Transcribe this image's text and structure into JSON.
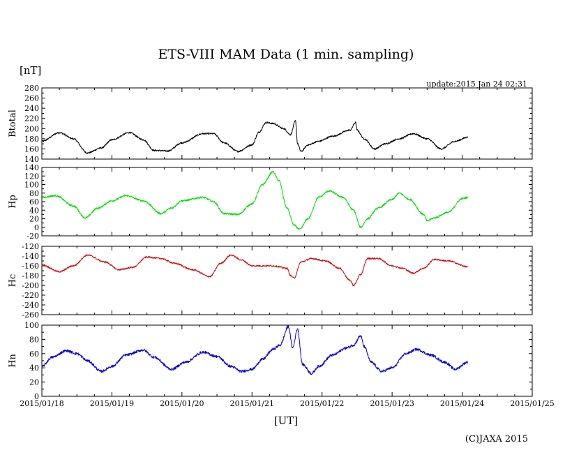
{
  "chart_data": {
    "type": "line",
    "title": "ETS-VIII MAM Data (1 min. sampling)",
    "unit_label": "[nT]",
    "update_text": "update:2015 Jan 24 02:31",
    "xlabel": "[UT]",
    "copyright": "(C)JAXA 2015",
    "x_tick_labels": [
      "2015/01/18",
      "2015/01/19",
      "2015/01/20",
      "2015/01/21",
      "2015/01/22",
      "2015/01/23",
      "2015/01/24",
      "2015/01/25"
    ],
    "x_range_days": [
      0,
      7
    ],
    "data_end_day": 6.08,
    "panels": [
      {
        "name": "Btotal",
        "color": "#000000",
        "ylim": [
          140,
          280
        ],
        "yticks": [
          140,
          160,
          180,
          200,
          220,
          240,
          260,
          280
        ],
        "yticklabels": [
          "140",
          "160",
          "180",
          "200",
          "220",
          "240",
          "260",
          "280"
        ],
        "noise": 1.5,
        "points": [
          [
            0,
            175
          ],
          [
            0.25,
            192
          ],
          [
            0.45,
            180
          ],
          [
            0.65,
            152
          ],
          [
            0.85,
            162
          ],
          [
            1.0,
            178
          ],
          [
            1.25,
            192
          ],
          [
            1.45,
            178
          ],
          [
            1.6,
            157
          ],
          [
            1.8,
            156
          ],
          [
            2.0,
            172
          ],
          [
            2.3,
            190
          ],
          [
            2.45,
            190
          ],
          [
            2.6,
            172
          ],
          [
            2.8,
            155
          ],
          [
            3.0,
            168
          ],
          [
            3.1,
            193
          ],
          [
            3.2,
            212
          ],
          [
            3.3,
            210
          ],
          [
            3.45,
            200
          ],
          [
            3.55,
            188
          ],
          [
            3.62,
            215
          ],
          [
            3.65,
            170
          ],
          [
            3.7,
            155
          ],
          [
            3.8,
            168
          ],
          [
            3.95,
            175
          ],
          [
            4.15,
            185
          ],
          [
            4.4,
            197
          ],
          [
            4.48,
            212
          ],
          [
            4.5,
            197
          ],
          [
            4.6,
            180
          ],
          [
            4.75,
            160
          ],
          [
            4.9,
            170
          ],
          [
            5.1,
            180
          ],
          [
            5.3,
            190
          ],
          [
            5.5,
            180
          ],
          [
            5.7,
            160
          ],
          [
            5.9,
            175
          ],
          [
            6.08,
            183
          ]
        ]
      },
      {
        "name": "Hp",
        "color": "#00dd00",
        "ylim": [
          -20,
          140
        ],
        "yticks": [
          -20,
          0,
          20,
          40,
          60,
          80,
          100,
          120,
          140
        ],
        "yticklabels": [
          "-20",
          "0",
          "20",
          "40",
          "60",
          "80",
          "100",
          "120",
          "140"
        ],
        "noise": 2.0,
        "points": [
          [
            0,
            70
          ],
          [
            0.2,
            74
          ],
          [
            0.45,
            50
          ],
          [
            0.62,
            22
          ],
          [
            0.8,
            45
          ],
          [
            1.0,
            62
          ],
          [
            1.2,
            74
          ],
          [
            1.45,
            62
          ],
          [
            1.7,
            32
          ],
          [
            1.85,
            45
          ],
          [
            2.0,
            62
          ],
          [
            2.3,
            70
          ],
          [
            2.45,
            60
          ],
          [
            2.6,
            32
          ],
          [
            2.8,
            30
          ],
          [
            3.0,
            55
          ],
          [
            3.15,
            100
          ],
          [
            3.3,
            130
          ],
          [
            3.38,
            110
          ],
          [
            3.5,
            45
          ],
          [
            3.6,
            5
          ],
          [
            3.68,
            -5
          ],
          [
            3.8,
            20
          ],
          [
            3.95,
            70
          ],
          [
            4.1,
            85
          ],
          [
            4.3,
            70
          ],
          [
            4.45,
            40
          ],
          [
            4.55,
            0
          ],
          [
            4.65,
            20
          ],
          [
            4.8,
            45
          ],
          [
            5.0,
            65
          ],
          [
            5.1,
            80
          ],
          [
            5.25,
            65
          ],
          [
            5.45,
            30
          ],
          [
            5.5,
            15
          ],
          [
            5.6,
            22
          ],
          [
            5.8,
            35
          ],
          [
            6.0,
            67
          ],
          [
            6.08,
            70
          ]
        ]
      },
      {
        "name": "Hc",
        "color": "#dd0000",
        "ylim": [
          -260,
          -120
        ],
        "yticks": [
          -260,
          -240,
          -220,
          -200,
          -180,
          -160,
          -140,
          -120
        ],
        "yticklabels": [
          "-260",
          "-240",
          "-220",
          "-200",
          "-180",
          "-160",
          "-140",
          "-120"
        ],
        "noise": 1.5,
        "points": [
          [
            0,
            -158
          ],
          [
            0.25,
            -172
          ],
          [
            0.45,
            -160
          ],
          [
            0.65,
            -138
          ],
          [
            0.9,
            -152
          ],
          [
            1.1,
            -168
          ],
          [
            1.3,
            -163
          ],
          [
            1.5,
            -142
          ],
          [
            1.7,
            -145
          ],
          [
            1.9,
            -155
          ],
          [
            2.15,
            -168
          ],
          [
            2.4,
            -182
          ],
          [
            2.55,
            -155
          ],
          [
            2.7,
            -138
          ],
          [
            2.85,
            -148
          ],
          [
            3.0,
            -160
          ],
          [
            3.3,
            -160
          ],
          [
            3.5,
            -165
          ],
          [
            3.55,
            -180
          ],
          [
            3.6,
            -185
          ],
          [
            3.7,
            -152
          ],
          [
            3.85,
            -145
          ],
          [
            4.05,
            -150
          ],
          [
            4.25,
            -165
          ],
          [
            4.4,
            -190
          ],
          [
            4.45,
            -200
          ],
          [
            4.55,
            -178
          ],
          [
            4.65,
            -145
          ],
          [
            4.8,
            -145
          ],
          [
            5.0,
            -160
          ],
          [
            5.15,
            -165
          ],
          [
            5.3,
            -175
          ],
          [
            5.45,
            -165
          ],
          [
            5.6,
            -147
          ],
          [
            5.8,
            -150
          ],
          [
            6.08,
            -162
          ]
        ]
      },
      {
        "name": "Hn",
        "color": "#0000dd",
        "ylim": [
          0,
          100
        ],
        "yticks": [
          0,
          20,
          40,
          60,
          80,
          100
        ],
        "yticklabels": [
          "0",
          "20",
          "40",
          "60",
          "80",
          "100"
        ],
        "noise": 1.8,
        "points": [
          [
            0,
            42
          ],
          [
            0.15,
            55
          ],
          [
            0.35,
            64
          ],
          [
            0.5,
            60
          ],
          [
            0.65,
            50
          ],
          [
            0.85,
            35
          ],
          [
            1.0,
            42
          ],
          [
            1.2,
            58
          ],
          [
            1.45,
            65
          ],
          [
            1.6,
            55
          ],
          [
            1.85,
            38
          ],
          [
            2.05,
            48
          ],
          [
            2.3,
            62
          ],
          [
            2.5,
            56
          ],
          [
            2.7,
            42
          ],
          [
            2.85,
            35
          ],
          [
            3.0,
            38
          ],
          [
            3.15,
            52
          ],
          [
            3.3,
            66
          ],
          [
            3.4,
            72
          ],
          [
            3.52,
            98
          ],
          [
            3.58,
            68
          ],
          [
            3.65,
            95
          ],
          [
            3.72,
            45
          ],
          [
            3.85,
            32
          ],
          [
            3.95,
            42
          ],
          [
            4.15,
            58
          ],
          [
            4.35,
            68
          ],
          [
            4.45,
            72
          ],
          [
            4.55,
            85
          ],
          [
            4.6,
            70
          ],
          [
            4.7,
            48
          ],
          [
            4.85,
            35
          ],
          [
            5.0,
            40
          ],
          [
            5.2,
            60
          ],
          [
            5.35,
            66
          ],
          [
            5.55,
            58
          ],
          [
            5.75,
            48
          ],
          [
            5.9,
            38
          ],
          [
            6.08,
            48
          ]
        ]
      }
    ]
  }
}
